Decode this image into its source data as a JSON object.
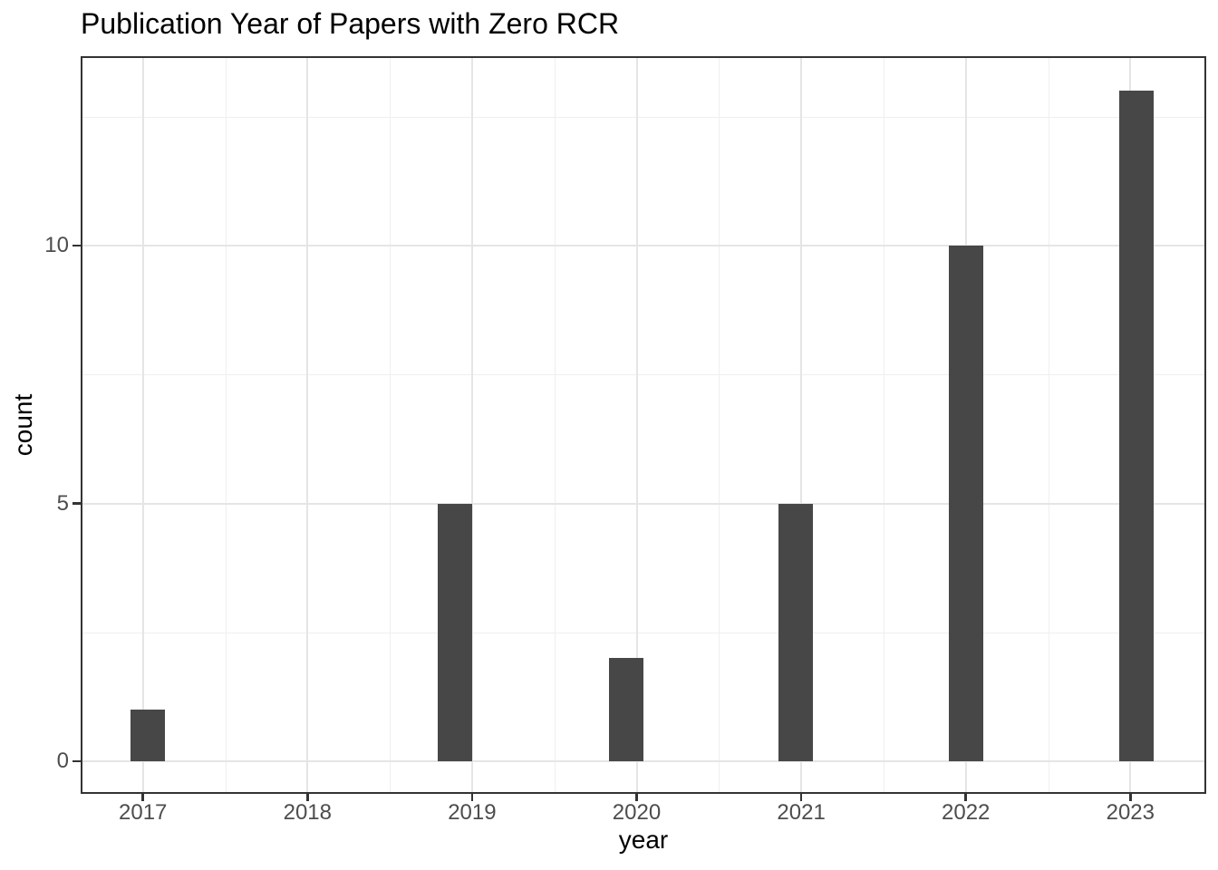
{
  "chart_data": {
    "type": "bar",
    "title": "Publication Year of Papers with Zero RCR",
    "xlabel": "year",
    "ylabel": "count",
    "categories": [
      "2017",
      "2018",
      "2019",
      "2020",
      "2021",
      "2022",
      "2023"
    ],
    "values": [
      1,
      0,
      5,
      2,
      5,
      10,
      13
    ],
    "y_ticks": [
      0,
      5,
      10
    ],
    "y_minor_gridlines": [
      2.5,
      7.5,
      12.5
    ],
    "x_minor_gridlines_between_years": true,
    "ylim": [
      -0.63,
      13.66
    ],
    "grid": "major+minor",
    "legend": "none",
    "colors": {
      "bar_fill": "#474747",
      "panel_border": "#333333",
      "grid_major": "#e5e5e5",
      "grid_minor": "#efefef",
      "tick_mark": "#333333",
      "tick_label": "#4d4d4d",
      "title": "#000000",
      "axis_title": "#000000",
      "background": "#ffffff"
    }
  }
}
